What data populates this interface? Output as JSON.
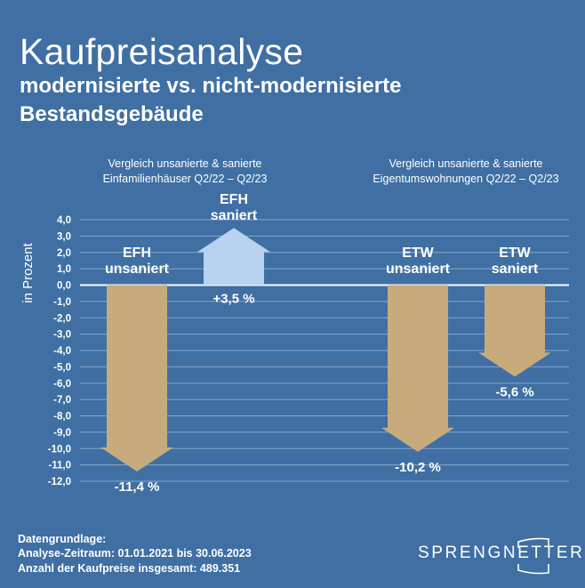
{
  "header": {
    "title": "Kaufpreisanalyse",
    "subtitle_line1": "modernisierte vs. nicht-modernisierte",
    "subtitle_line2": "Bestandsgebäude"
  },
  "groups": [
    {
      "line1": "Vergleich unsanierte & sanierte",
      "line2": "Einfamilienhäuser Q2/22 – Q2/23"
    },
    {
      "line1": "Vergleich unsanierte & sanierte",
      "line2": "Eigentumswohnungen Q2/22 – Q2/23"
    }
  ],
  "colors": {
    "background": "#3f6fa3",
    "negative": "#c8ab7c",
    "positive": "#b8d3ef",
    "grid": "#86a7cc"
  },
  "chart_data": {
    "type": "bar",
    "style": "arrows",
    "ylabel": "in Prozent",
    "ylim": [
      -12,
      4
    ],
    "yticks": [
      "4,0",
      "3,0",
      "2,0",
      "1,0",
      "0,0",
      "-1,0",
      "-2,0",
      "-3,0",
      "-4,0",
      "-5,0",
      "-6,0",
      "-7,0",
      "-8,0",
      "-9,0",
      "-10,0",
      "-11,0",
      "-12,0"
    ],
    "grid": true,
    "categories": [
      {
        "line1": "EFH",
        "line2": "unsaniert"
      },
      {
        "line1": "EFH",
        "line2": "saniert"
      },
      {
        "line1": "ETW",
        "line2": "unsaniert"
      },
      {
        "line1": "ETW",
        "line2": "saniert"
      }
    ],
    "values": [
      -11.4,
      3.5,
      -10.2,
      -5.6
    ],
    "data_labels": [
      "-11,4 %",
      "+3,5 %",
      "-10,2 %",
      "-5,6 %"
    ]
  },
  "footer": {
    "line1": "Datengrundlage:",
    "line2": "Analyse-Zeitraum: 01.01.2021 bis 30.06.2023",
    "line3": "Anzahl der Kaufpreise insgesamt: 489.351"
  },
  "logo": {
    "text": "SPRENGNETTER"
  }
}
